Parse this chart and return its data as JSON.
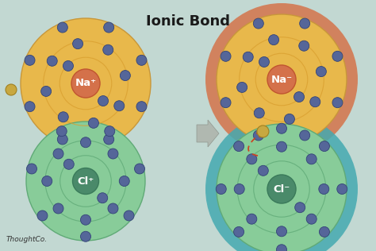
{
  "title": "Ionic Bond",
  "title_fontsize": 13,
  "background_color": "#c2d8d2",
  "na_plus_label": "Na⁺",
  "na_minus_label": "Na⁻",
  "cl_plus_label": "Cl⁺",
  "cl_minus_label": "Cl⁻",
  "thoughtco_text": "ThoughtCo.",
  "na_nucleus_color": "#d4714a",
  "na_nucleus_edge": "#c05530",
  "na_body_color": "#e8b84b",
  "na_body_edge": "#c8973a",
  "na_inner_ring_color": "#daa030",
  "cl_nucleus_color": "#4a8a6a",
  "cl_nucleus_edge": "#3a7a5a",
  "cl_body_color": "#88cc99",
  "cl_body_edge": "#60aa77",
  "cl_inner_ring_color": "#60aa77",
  "na_outer_ring_color": "#d4734a",
  "cl_outer_ring_color": "#44aab0",
  "electron_color": "#556699",
  "electron_edge": "#334477",
  "arrow_color": "#b0b8b0",
  "arrow_edge": "#909890",
  "dashed_arrow_color": "#cc4422",
  "lone_electron_color": "#c8a840",
  "lone_electron_edge": "#a08020",
  "label_color": "white"
}
